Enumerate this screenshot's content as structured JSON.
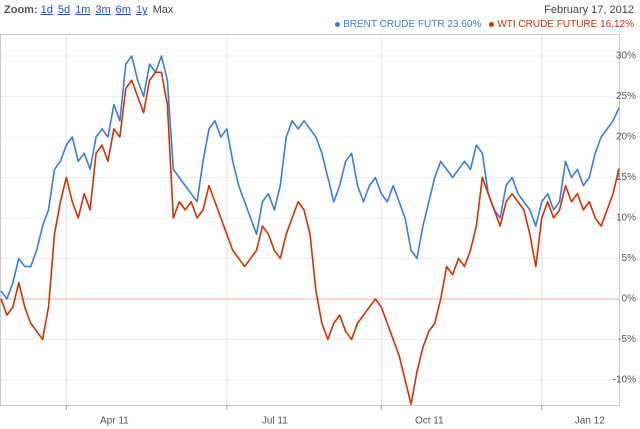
{
  "toolbar": {
    "zoom_label": "Zoom:",
    "options": [
      "1d",
      "5d",
      "1m",
      "3m",
      "6m",
      "1y",
      "Max"
    ],
    "date": "February 17, 2012"
  },
  "chart_data": {
    "type": "line",
    "categories": [
      null,
      null,
      null,
      null,
      null,
      null,
      null,
      null,
      null,
      null,
      null,
      "Apr 11",
      null,
      null,
      null,
      null,
      null,
      null,
      null,
      null,
      null,
      null,
      null,
      null,
      null,
      null,
      null,
      null,
      null,
      null,
      null,
      null,
      null,
      null,
      null,
      null,
      null,
      null,
      "Jul 11",
      null,
      null,
      null,
      null,
      null,
      null,
      null,
      null,
      null,
      null,
      null,
      null,
      null,
      null,
      null,
      null,
      null,
      null,
      null,
      null,
      null,
      null,
      null,
      null,
      null,
      "Oct 11",
      null,
      null,
      null,
      null,
      null,
      null,
      null,
      null,
      null,
      null,
      null,
      null,
      null,
      null,
      null,
      null,
      null,
      null,
      null,
      null,
      null,
      null,
      null,
      null,
      null,
      null,
      "Jan 12",
      null,
      null,
      null,
      null,
      null,
      null,
      null,
      null,
      null,
      null,
      null,
      null,
      null
    ],
    "series": [
      {
        "name": "BRENT CRUDE FUTR 23.60%",
        "color": "#3b7ddd",
        "values": [
          1,
          0,
          2,
          5,
          4,
          4,
          6,
          9,
          11,
          16,
          17,
          19,
          20,
          17,
          18,
          16,
          20,
          21,
          20,
          24,
          22,
          29,
          30,
          27,
          25,
          29,
          28,
          30,
          27,
          16,
          15,
          14,
          13,
          12,
          17,
          21,
          22,
          20,
          21,
          17,
          14,
          12,
          10,
          8,
          12,
          13,
          11,
          14,
          20,
          22,
          21,
          22,
          21,
          20,
          18,
          15,
          12,
          14,
          17,
          18,
          14,
          12,
          14,
          15,
          13,
          12,
          14,
          12,
          10,
          6,
          5,
          9,
          12,
          15,
          17,
          16,
          15,
          16,
          17,
          16,
          19,
          18,
          13,
          11,
          10,
          14,
          15,
          13,
          12,
          11,
          9,
          12,
          13,
          11,
          12,
          17,
          15,
          16,
          14,
          15,
          18,
          20,
          21,
          22,
          23.6
        ]
      },
      {
        "name": "WTI CRUDE FUTURE 16.12%",
        "color": "#d63000",
        "values": [
          0,
          -2,
          -1,
          2,
          -1,
          -3,
          -4,
          -5,
          -1,
          8,
          12,
          15,
          12,
          10,
          13,
          11,
          18,
          19,
          17,
          21,
          20,
          26,
          27,
          25,
          23,
          27,
          28,
          28,
          24,
          10,
          12,
          11,
          12,
          10,
          11,
          14,
          12,
          10,
          8,
          6,
          5,
          4,
          5,
          6,
          9,
          8,
          6,
          5,
          8,
          10,
          12,
          11,
          8,
          1,
          -3,
          -5,
          -3,
          -2,
          -4,
          -5,
          -3,
          -2,
          -1,
          0,
          -1,
          -3,
          -5,
          -7,
          -10,
          -13,
          -9,
          -6,
          -4,
          -3,
          0,
          4,
          3,
          5,
          4,
          6,
          9,
          15,
          13,
          11,
          9,
          12,
          13,
          12,
          11,
          8,
          4,
          10,
          12,
          10,
          11,
          14,
          12,
          13,
          11,
          12,
          10,
          9,
          11,
          13,
          16.12
        ]
      }
    ],
    "ylim": [
      -13.1,
      32.6
    ],
    "yticks": [
      {
        "value": -10,
        "label": "-10%"
      },
      {
        "value": -5,
        "label": "-5%"
      },
      {
        "value": 0,
        "label": "0%"
      },
      {
        "value": 5,
        "label": "5%"
      },
      {
        "value": 10,
        "label": "10%"
      },
      {
        "value": 15,
        "label": "15%"
      },
      {
        "value": 20,
        "label": "20%"
      },
      {
        "value": 25,
        "label": "25%"
      },
      {
        "value": 30,
        "label": "30%"
      }
    ],
    "grid": true
  }
}
